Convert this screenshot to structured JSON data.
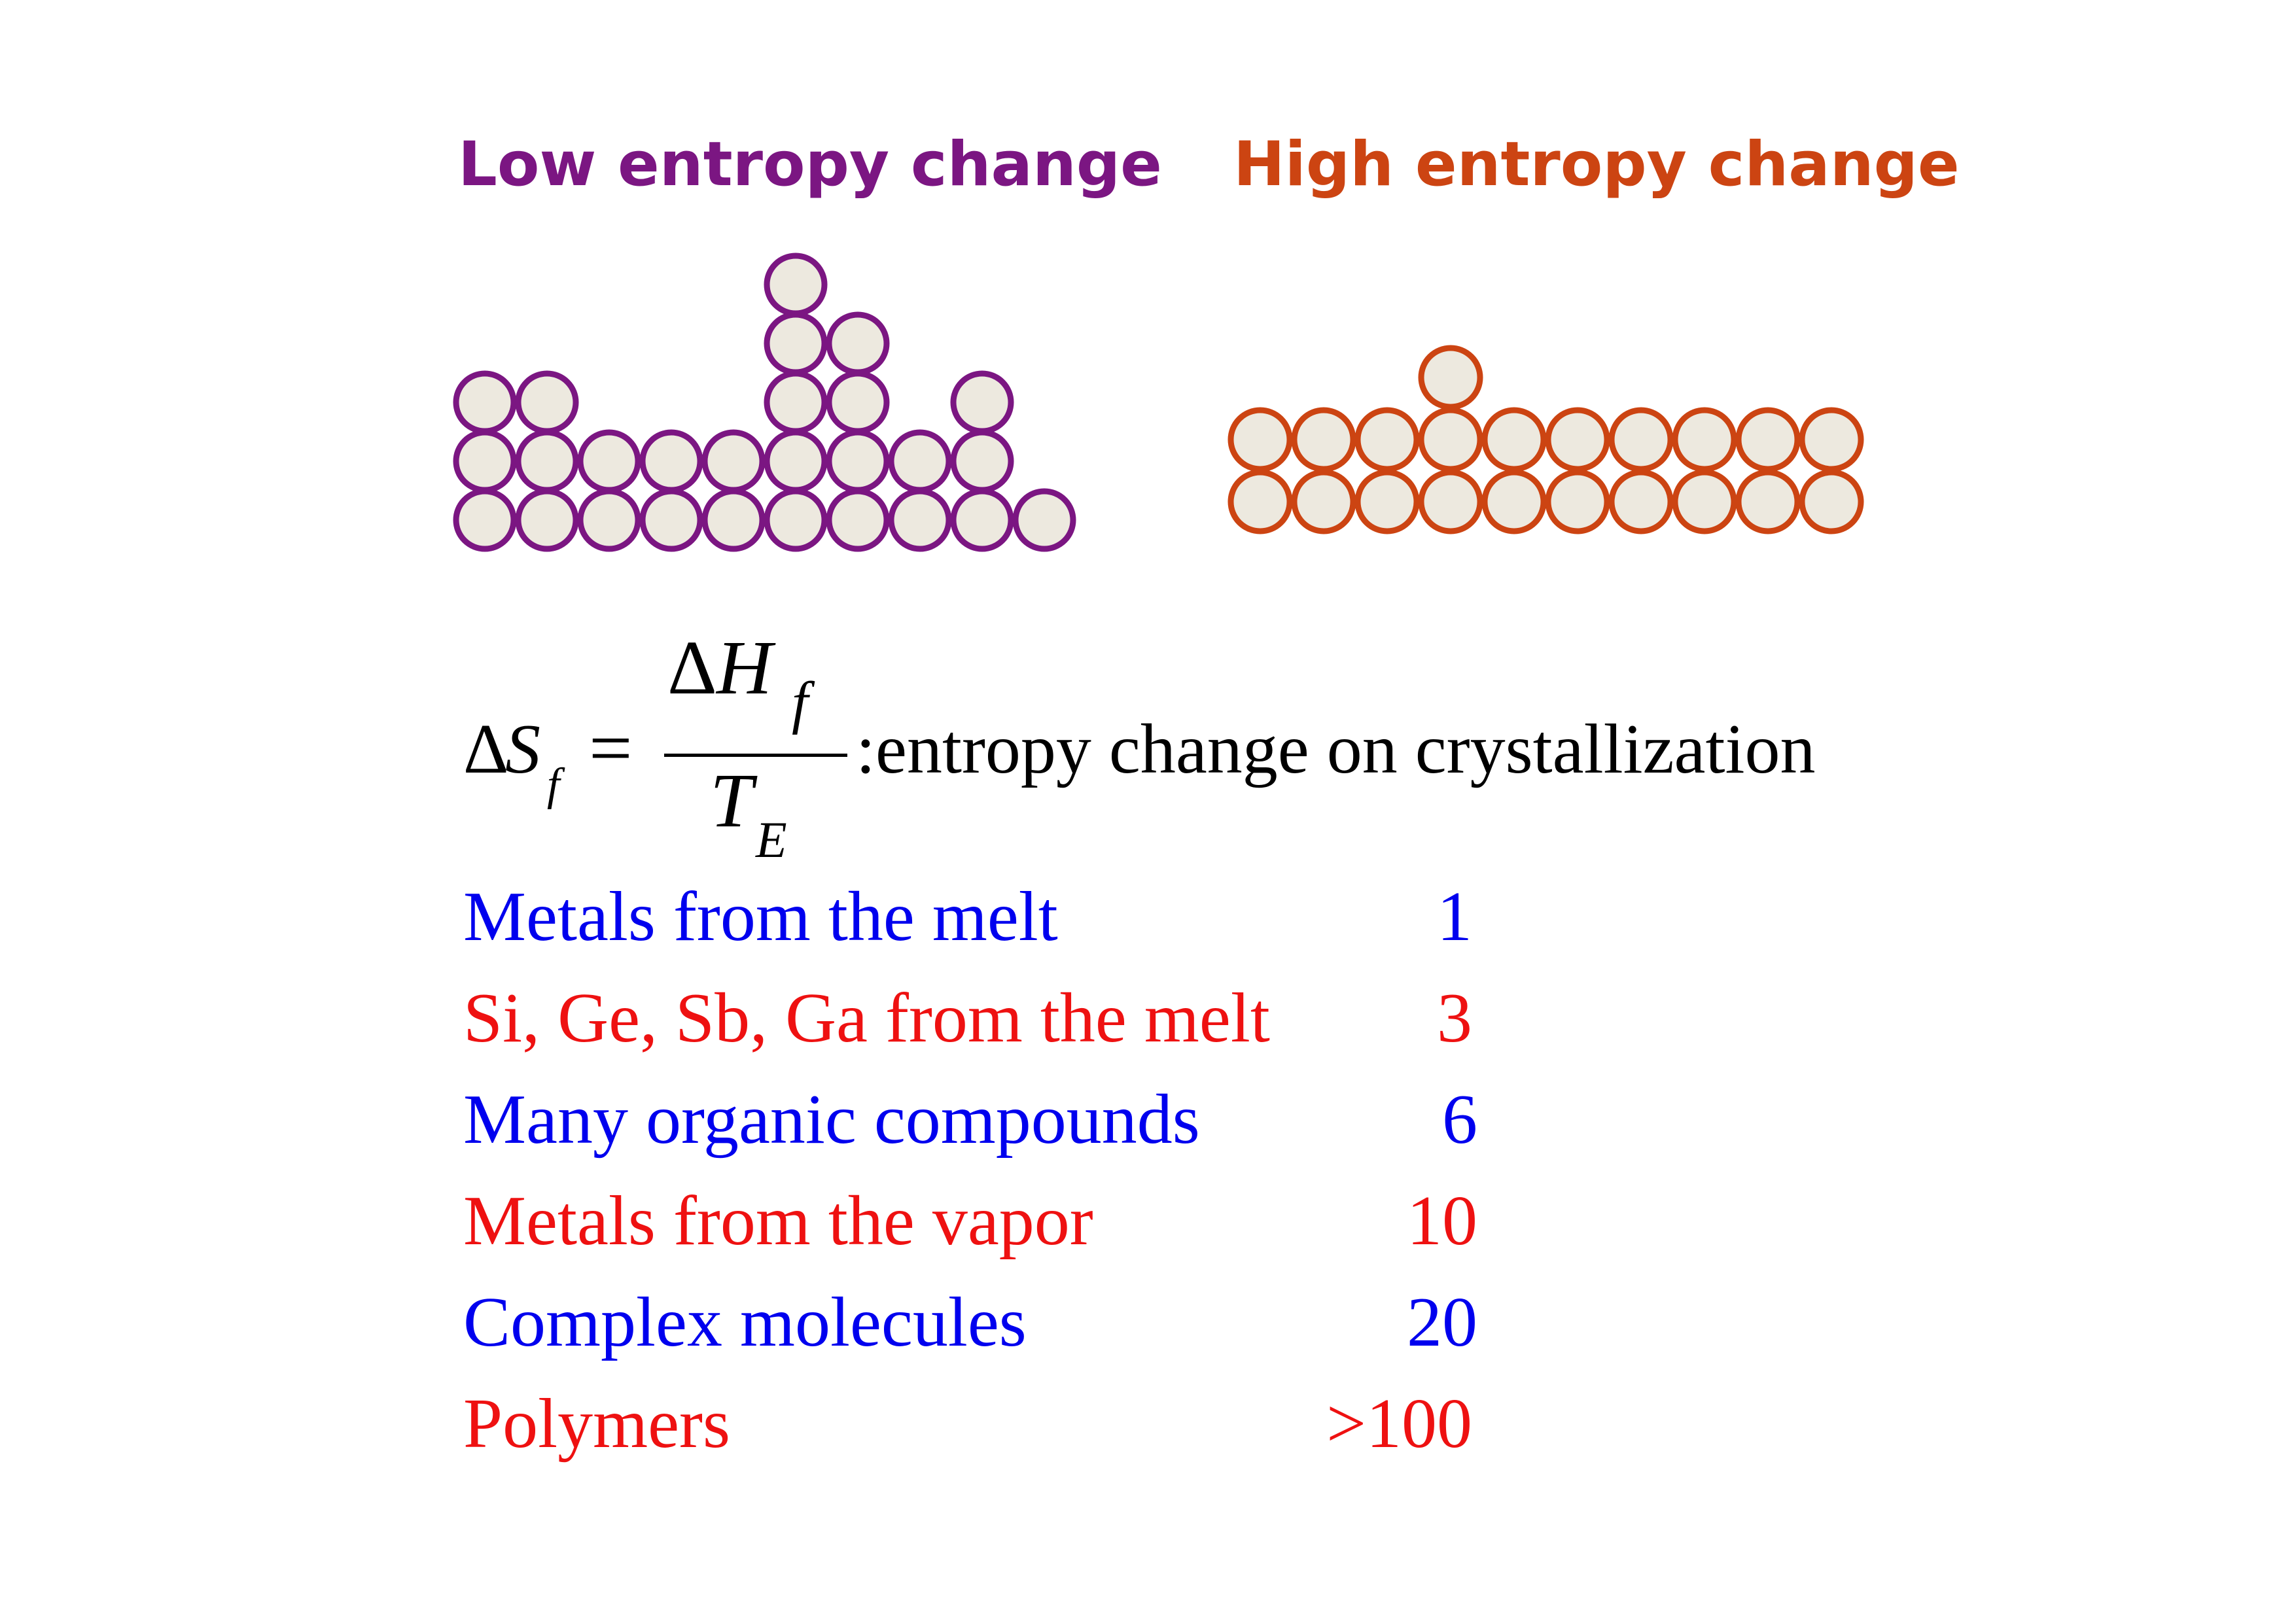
{
  "headings": {
    "low": "Low entropy change",
    "high": "High entropy change"
  },
  "colors": {
    "low": "#7b1682",
    "high": "#cc4412",
    "atom_fill": "#ede9df",
    "blue": "#0000ee",
    "red": "#ee1111"
  },
  "formula": {
    "lhs_delta": "Δ",
    "lhs_var": "S",
    "lhs_sub": "f",
    "equals": "=",
    "num_delta": "Δ",
    "num_var": "H",
    "num_sub": "f",
    "den_var": "T",
    "den_sub": "E",
    "caption": ":entropy change on crystallization"
  },
  "table": [
    {
      "label": "Metals from the melt",
      "value": "1",
      "color": "blue"
    },
    {
      "label": "Si, Ge, Sb, Ga from the melt",
      "value": "3",
      "color": "red"
    },
    {
      "label": "Many organic compounds",
      "value": "6",
      "color": "blue"
    },
    {
      "label": "Metals from the vapor",
      "value": "10",
      "color": "red"
    },
    {
      "label": "Complex molecules",
      "value": "20",
      "color": "blue"
    },
    {
      "label": "Polymers",
      "value": ">100",
      "color": "red"
    }
  ]
}
